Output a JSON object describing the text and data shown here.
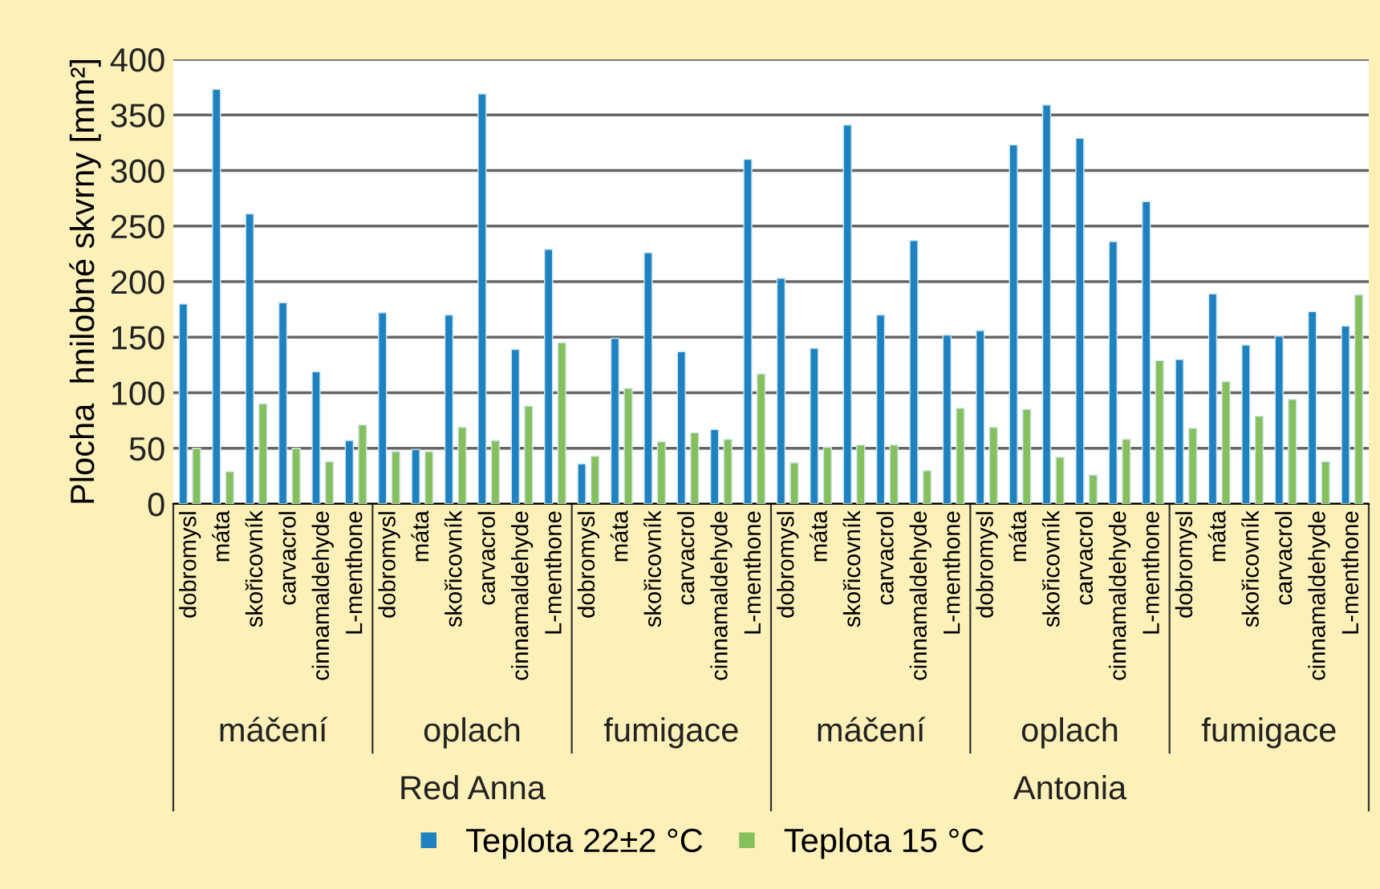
{
  "chart_data": {
    "type": "bar",
    "ylabel": "Plocha  hnilobné skvrny [mm²]",
    "categories": [
      "dobromysl",
      "máta",
      "skořicovník",
      "carvacrol",
      "cinnamaldehyde",
      "L-menthone",
      "dobromysl",
      "máta",
      "skořicovník",
      "carvacrol",
      "cinnamaldehyde",
      "L-menthone",
      "dobromysl",
      "máta",
      "skořicovník",
      "carvacrol",
      "cinnamaldehyde",
      "L-menthone",
      "dobromysl",
      "máta",
      "skořicovník",
      "carvacrol",
      "cinnamaldehyde",
      "L-menthone",
      "dobromysl",
      "máta",
      "skořicovník",
      "carvacrol",
      "cinnamaldehyde",
      "L-menthone",
      "dobromysl",
      "máta",
      "skořicovník",
      "carvacrol",
      "cinnamaldehyde",
      "L-menthone"
    ],
    "series": [
      {
        "name": "Teplota 22±2 °C",
        "color": "#1f82c0",
        "values": [
          180,
          373,
          261,
          181,
          119,
          57,
          172,
          49,
          170,
          369,
          139,
          229,
          36,
          149,
          226,
          137,
          67,
          310,
          203,
          140,
          341,
          170,
          237,
          152,
          156,
          323,
          359,
          329,
          236,
          272,
          130,
          189,
          143,
          151,
          173,
          160
        ]
      },
      {
        "name": "Teplota 15 °C",
        "color": "#86c05c",
        "values": [
          50,
          29,
          90,
          50,
          38,
          71,
          47,
          47,
          69,
          57,
          88,
          145,
          43,
          104,
          56,
          64,
          58,
          117,
          37,
          51,
          53,
          53,
          30,
          86,
          69,
          85,
          42,
          26,
          58,
          129,
          68,
          110,
          79,
          94,
          38,
          188
        ]
      }
    ],
    "annotations": [
      "máčení",
      "oplach",
      "fumigace",
      "máčení",
      "oplach",
      "fumigace",
      "Red Anna",
      "Antonia"
    ],
    "ylim": [
      0,
      400
    ],
    "yticks": [
      0,
      50,
      100,
      150,
      200,
      250,
      300,
      350,
      400
    ],
    "grid": "y",
    "legend": "bottom"
  }
}
